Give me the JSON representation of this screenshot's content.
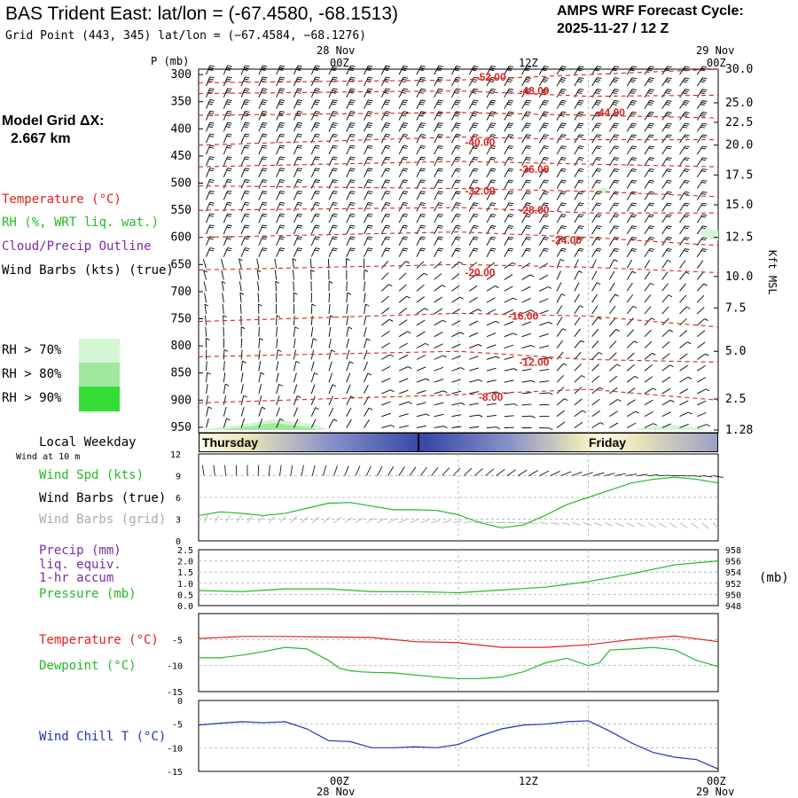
{
  "header": {
    "title": "BAS Trident East:  lat/lon = (-67.4580, -68.1513)",
    "gridpoint": "Grid Point (443, 345) lat/lon = (−67.4584, −68.1276)",
    "cycle_label": "AMPS WRF Forecast Cycle:",
    "cycle_value": "2025-11-27 / 12  Z"
  },
  "left_panel": {
    "model_grid_label": "Model Grid ΔX:",
    "model_grid_value": "2.667 km",
    "legend": [
      {
        "text": "Temperature (°C)",
        "color": "#e0201c"
      },
      {
        "text": "RH (%, WRT liq. wat.)",
        "color": "#22bb22"
      },
      {
        "text": "Cloud/Precip Outline",
        "color": "#7a2ca0"
      },
      {
        "text": "Wind Barbs (kts) (true)",
        "color": "#000000"
      }
    ],
    "rh_legend": [
      {
        "text": "RH > 70%",
        "color": "#d2f6d2"
      },
      {
        "text": "RH > 80%",
        "color": "#a0e8a0"
      },
      {
        "text": "RH > 90%",
        "color": "#33dd33"
      }
    ]
  },
  "time_axis": {
    "top_date_left": "28 Nov",
    "top_date_right": "29 Nov",
    "ticks": [
      "00Z",
      "12Z",
      "00Z"
    ],
    "bottom_date_left": "28 Nov",
    "bottom_date_right": "29 Nov"
  },
  "colors": {
    "temp": "#e0201c",
    "rh": "#22bb22",
    "cloud": "#7a2ca0",
    "wind_chill": "#2030c0",
    "grid": "#bbbbbb"
  },
  "weekday_bar": {
    "label": "Local Weekday",
    "days": [
      "Thursday",
      "Friday"
    ]
  },
  "chart_data": [
    {
      "type": "heatmap",
      "name": "cross-section",
      "yaxis_label": "P (mb)",
      "pressure_levels": [
        300,
        350,
        400,
        450,
        500,
        550,
        600,
        650,
        700,
        750,
        800,
        850,
        900,
        950
      ],
      "right_axis_label": "Kft MSL",
      "right_axis_ticks": [
        "30.0",
        "25.0",
        "22.5",
        "20.0",
        "17.5",
        "15.0",
        "12.5",
        "10.0",
        "7.5",
        "5.0",
        "2.5",
        "1.28"
      ],
      "right_axis_pressures": [
        290,
        352,
        388,
        430,
        485,
        540,
        600,
        672,
        730,
        810,
        898,
        955
      ],
      "time_hours": [
        -24,
        -18,
        -12,
        -6,
        0,
        6,
        12,
        18,
        24
      ],
      "isotherms": [
        {
          "label": "-52.00",
          "value": -52,
          "points": [
            [
              -24,
              315
            ],
            [
              0,
              310
            ],
            [
              12,
              300
            ],
            [
              24,
              290
            ]
          ],
          "label_at": [
            3,
            305
          ]
        },
        {
          "label": "-48.00",
          "value": -48,
          "points": [
            [
              -24,
              335
            ],
            [
              0,
              330
            ],
            [
              12,
              340
            ],
            [
              24,
              338
            ]
          ],
          "label_at": [
            7,
            330
          ]
        },
        {
          "label": "-44.00",
          "value": -44,
          "points": [
            [
              -24,
              375
            ],
            [
              0,
              370
            ],
            [
              12,
              375
            ],
            [
              24,
              380
            ]
          ],
          "label_at": [
            14,
            370
          ]
        },
        {
          "label": "-40.00",
          "value": -40,
          "points": [
            [
              -24,
              430
            ],
            [
              0,
              415
            ],
            [
              12,
              420
            ],
            [
              24,
              420
            ]
          ],
          "label_at": [
            2,
            425
          ]
        },
        {
          "label": "-36.00",
          "value": -36,
          "points": [
            [
              -24,
              470
            ],
            [
              0,
              460
            ],
            [
              12,
              465
            ],
            [
              24,
              470
            ]
          ],
          "label_at": [
            7,
            475
          ]
        },
        {
          "label": "-32.00",
          "value": -32,
          "points": [
            [
              -24,
              505
            ],
            [
              0,
              510
            ],
            [
              12,
              515
            ],
            [
              24,
              525
            ]
          ],
          "label_at": [
            2,
            515
          ]
        },
        {
          "label": "-28.00",
          "value": -28,
          "points": [
            [
              -24,
              550
            ],
            [
              0,
              545
            ],
            [
              12,
              555
            ],
            [
              24,
              555
            ]
          ],
          "label_at": [
            7,
            550
          ]
        },
        {
          "label": "-24.00",
          "value": -24,
          "points": [
            [
              -24,
              600
            ],
            [
              0,
              590
            ],
            [
              12,
              600
            ],
            [
              24,
              615
            ]
          ],
          "label_at": [
            10,
            605
          ]
        },
        {
          "label": "-20.00",
          "value": -20,
          "points": [
            [
              -24,
              660
            ],
            [
              0,
              650
            ],
            [
              12,
              655
            ],
            [
              24,
              665
            ]
          ],
          "label_at": [
            2,
            665
          ]
        },
        {
          "label": "-16.00",
          "value": -16,
          "points": [
            [
              -24,
              755
            ],
            [
              0,
              740
            ],
            [
              12,
              745
            ],
            [
              24,
              765
            ]
          ],
          "label_at": [
            6,
            745
          ]
        },
        {
          "label": "-12.00",
          "value": -12,
          "points": [
            [
              -24,
              820
            ],
            [
              0,
              810
            ],
            [
              12,
              825
            ],
            [
              24,
              830
            ]
          ],
          "label_at": [
            7,
            830
          ]
        },
        {
          "label": "-8.00",
          "value": -8,
          "points": [
            [
              -24,
              905
            ],
            [
              0,
              890
            ],
            [
              12,
              880
            ],
            [
              24,
              900
            ]
          ],
          "label_at": [
            3,
            895
          ]
        }
      ],
      "rh_regions": [
        {
          "level": "70",
          "color": "#d2f6d2",
          "points": [
            [
              -24,
              955
            ],
            [
              -20,
              945
            ],
            [
              -17,
              935
            ],
            [
              -13,
              945
            ],
            [
              -12,
              955
            ]
          ]
        },
        {
          "level": "80",
          "color": "#a0e8a0",
          "points": [
            [
              -22,
              955
            ],
            [
              -19,
              948
            ],
            [
              -17,
              942
            ],
            [
              -14,
              950
            ],
            [
              -13,
              955
            ]
          ]
        },
        {
          "level": "70",
          "color": "#d2f6d2",
          "points": [
            [
              16,
              955
            ],
            [
              18,
              948
            ],
            [
              20,
              946
            ],
            [
              22,
              950
            ],
            [
              23,
              955
            ]
          ]
        },
        {
          "level": "70",
          "color": "#d2f6d2",
          "points": [
            [
              12.5,
              518
            ],
            [
              13.2,
              508
            ],
            [
              14,
              512
            ],
            [
              13.5,
              520
            ]
          ]
        },
        {
          "level": "70",
          "color": "#d2f6d2",
          "points": [
            [
              22,
              590
            ],
            [
              23,
              585
            ],
            [
              24,
              588
            ],
            [
              24,
              605
            ],
            [
              23,
              600
            ]
          ]
        }
      ]
    },
    {
      "type": "line",
      "name": "wind-speed",
      "title": "Wind at 10 m",
      "ylabel": "Wind Spd (kts)",
      "ylim": [
        0,
        12
      ],
      "yticks": [
        0,
        3,
        6,
        9,
        12
      ],
      "x": [
        -24,
        -22,
        -20,
        -18,
        -16,
        -14,
        -12,
        -10,
        -8,
        -6,
        -4,
        -2,
        0,
        2,
        4,
        6,
        8,
        10,
        12,
        14,
        16,
        18,
        20,
        22,
        24
      ],
      "values": [
        3.5,
        4.0,
        3.8,
        3.5,
        3.8,
        4.5,
        5.2,
        5.3,
        4.8,
        4.3,
        4.3,
        4.2,
        3.6,
        2.5,
        1.8,
        2.2,
        3.5,
        5.0,
        6.0,
        7.0,
        8.0,
        8.5,
        8.8,
        8.5,
        8.0
      ],
      "labels": [
        "Wind Spd (kts)",
        "Wind Barbs (true)",
        "Wind Barbs (grid)"
      ],
      "label_colors": [
        "#22bb22",
        "#000000",
        "#aaaaaa"
      ]
    },
    {
      "type": "line",
      "name": "precip-pressure",
      "labels": [
        "Precip (mm)",
        "liq. equiv.",
        "1-hr accum",
        "Pressure (mb)"
      ],
      "label_colors": [
        "#7a2ca0",
        "#7a2ca0",
        "#7a2ca0",
        "#22bb22"
      ],
      "ylim_left": [
        0,
        2.5
      ],
      "yticks_left": [
        "0.0",
        "0.5",
        "1.0",
        "1.5",
        "2.0",
        "2.5"
      ],
      "ylim_right": [
        948,
        958
      ],
      "yticks_right": [
        "948",
        "950",
        "952",
        "954",
        "956",
        "958"
      ],
      "right_unit": "(mb)",
      "x": [
        -24,
        -20,
        -16,
        -12,
        -8,
        -4,
        0,
        4,
        8,
        12,
        16,
        20,
        24
      ],
      "pressure": [
        950.7,
        950.5,
        951.0,
        951.0,
        950.5,
        950.5,
        950.3,
        950.8,
        951.3,
        952.3,
        953.7,
        955.3,
        956.0
      ]
    },
    {
      "type": "line",
      "name": "temperature-dewpoint",
      "ylim": [
        -15,
        0
      ],
      "yticks": [
        -15,
        -10,
        -5
      ],
      "series": [
        {
          "name": "Temperature (°C)",
          "color": "#e0201c",
          "x": [
            -24,
            -20,
            -16,
            -12,
            -8,
            -4,
            0,
            4,
            8,
            12,
            16,
            20,
            24
          ],
          "values": [
            -4.8,
            -4.4,
            -4.4,
            -4.5,
            -4.6,
            -5.4,
            -5.6,
            -6.5,
            -6.5,
            -6.0,
            -5.0,
            -4.3,
            -5.4
          ]
        },
        {
          "name": "Dewpoint (°C)",
          "color": "#22bb22",
          "x": [
            -24,
            -22,
            -20,
            -18,
            -16,
            -14,
            -12,
            -11,
            -10,
            -9,
            -8,
            -6,
            -4,
            -2,
            0,
            2,
            4,
            6,
            8,
            10,
            12,
            13,
            14,
            16,
            18,
            20,
            22,
            24
          ],
          "values": [
            -8.5,
            -8.5,
            -8.0,
            -7.3,
            -6.5,
            -6.8,
            -9.0,
            -10.5,
            -11.0,
            -11.2,
            -11.3,
            -11.4,
            -11.8,
            -12.2,
            -12.5,
            -12.5,
            -12.2,
            -11.2,
            -9.5,
            -8.6,
            -10.0,
            -9.5,
            -7.0,
            -6.8,
            -6.5,
            -7.0,
            -9.0,
            -10.2
          ]
        }
      ]
    },
    {
      "type": "line",
      "name": "wind-chill",
      "title": "Wind Chill T (°C)",
      "color": "#2030c0",
      "ylim": [
        -15,
        0
      ],
      "yticks": [
        -15,
        -10,
        -5,
        0
      ],
      "x": [
        -24,
        -22,
        -20,
        -18,
        -16,
        -14,
        -12,
        -10,
        -8,
        -6,
        -4,
        -2,
        0,
        2,
        4,
        6,
        8,
        10,
        12,
        14,
        16,
        18,
        20,
        22,
        24
      ],
      "values": [
        -5.2,
        -4.8,
        -4.5,
        -4.7,
        -4.5,
        -6.0,
        -8.5,
        -8.7,
        -10.0,
        -10.0,
        -9.8,
        -10.0,
        -9.3,
        -7.5,
        -6.0,
        -5.2,
        -5.0,
        -4.5,
        -4.3,
        -6.5,
        -9.0,
        -11.0,
        -12.0,
        -12.5,
        -14.5
      ]
    }
  ]
}
